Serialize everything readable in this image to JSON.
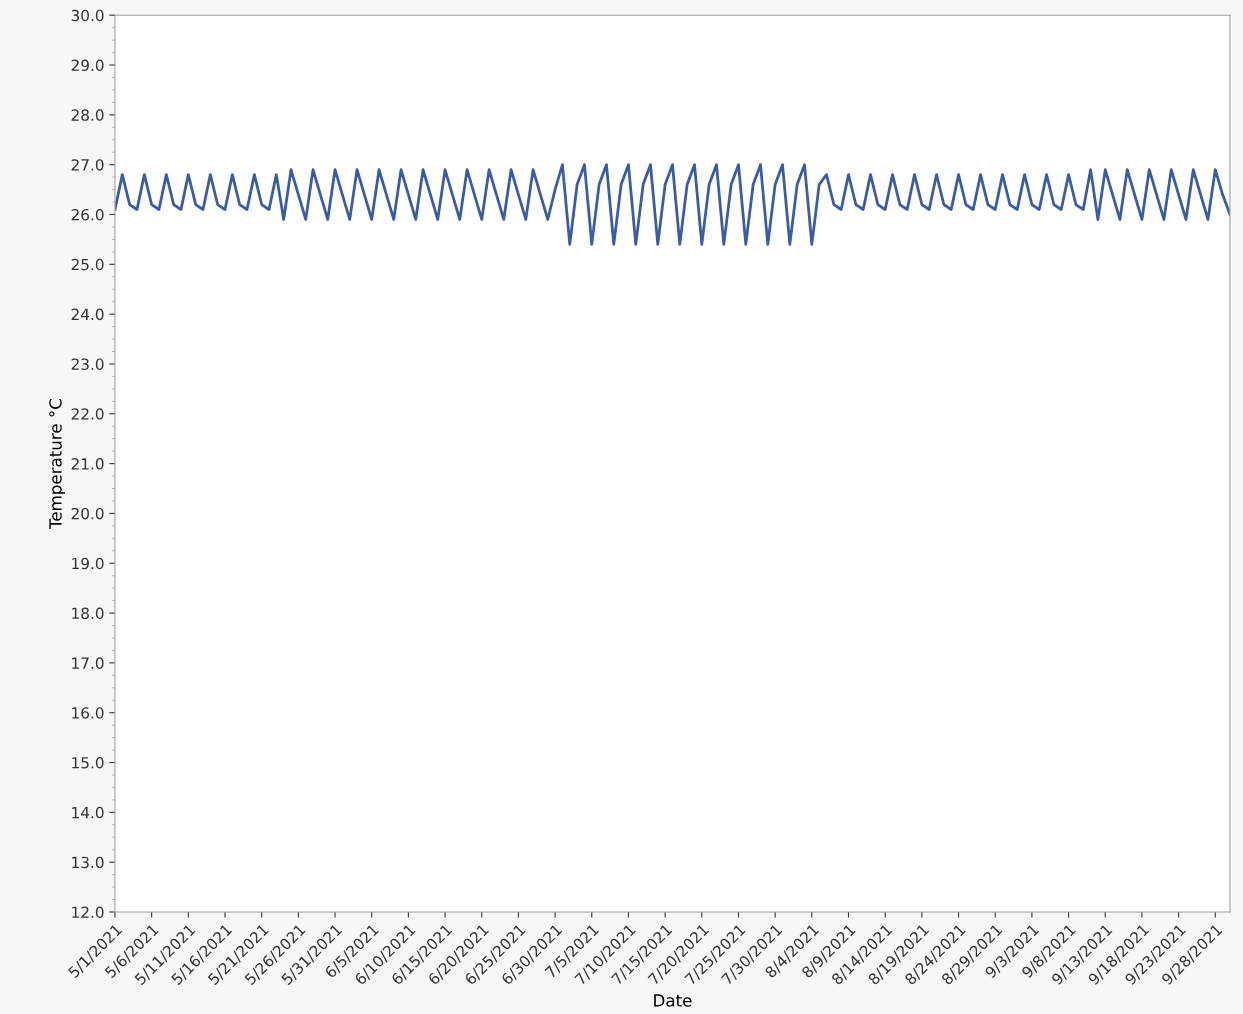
{
  "chart_data": {
    "type": "line",
    "xlabel": "Date",
    "ylabel": "Temperature °C",
    "x": [
      "2021-05-01",
      "2021-05-02",
      "2021-05-03",
      "2021-05-04",
      "2021-05-05",
      "2021-05-06",
      "2021-05-07",
      "2021-05-08",
      "2021-05-09",
      "2021-05-10",
      "2021-05-11",
      "2021-05-12",
      "2021-05-13",
      "2021-05-14",
      "2021-05-15",
      "2021-05-16",
      "2021-05-17",
      "2021-05-18",
      "2021-05-19",
      "2021-05-20",
      "2021-05-21",
      "2021-05-22",
      "2021-05-23",
      "2021-05-24",
      "2021-05-25",
      "2021-05-26",
      "2021-05-27",
      "2021-05-28",
      "2021-05-29",
      "2021-05-30",
      "2021-05-31",
      "2021-06-01",
      "2021-06-02",
      "2021-06-03",
      "2021-06-04",
      "2021-06-05",
      "2021-06-06",
      "2021-06-07",
      "2021-06-08",
      "2021-06-09",
      "2021-06-10",
      "2021-06-11",
      "2021-06-12",
      "2021-06-13",
      "2021-06-14",
      "2021-06-15",
      "2021-06-16",
      "2021-06-17",
      "2021-06-18",
      "2021-06-19",
      "2021-06-20",
      "2021-06-21",
      "2021-06-22",
      "2021-06-23",
      "2021-06-24",
      "2021-06-25",
      "2021-06-26",
      "2021-06-27",
      "2021-06-28",
      "2021-06-29",
      "2021-06-30",
      "2021-07-01",
      "2021-07-02",
      "2021-07-03",
      "2021-07-04",
      "2021-07-05",
      "2021-07-06",
      "2021-07-07",
      "2021-07-08",
      "2021-07-09",
      "2021-07-10",
      "2021-07-11",
      "2021-07-12",
      "2021-07-13",
      "2021-07-14",
      "2021-07-15",
      "2021-07-16",
      "2021-07-17",
      "2021-07-18",
      "2021-07-19",
      "2021-07-20",
      "2021-07-21",
      "2021-07-22",
      "2021-07-23",
      "2021-07-24",
      "2021-07-25",
      "2021-07-26",
      "2021-07-27",
      "2021-07-28",
      "2021-07-29",
      "2021-07-30",
      "2021-07-31",
      "2021-08-01",
      "2021-08-02",
      "2021-08-03",
      "2021-08-04",
      "2021-08-05",
      "2021-08-06",
      "2021-08-07",
      "2021-08-08",
      "2021-08-09",
      "2021-08-10",
      "2021-08-11",
      "2021-08-12",
      "2021-08-13",
      "2021-08-14",
      "2021-08-15",
      "2021-08-16",
      "2021-08-17",
      "2021-08-18",
      "2021-08-19",
      "2021-08-20",
      "2021-08-21",
      "2021-08-22",
      "2021-08-23",
      "2021-08-24",
      "2021-08-25",
      "2021-08-26",
      "2021-08-27",
      "2021-08-28",
      "2021-08-29",
      "2021-08-30",
      "2021-08-31",
      "2021-09-01",
      "2021-09-02",
      "2021-09-03",
      "2021-09-04",
      "2021-09-05",
      "2021-09-06",
      "2021-09-07",
      "2021-09-08",
      "2021-09-09",
      "2021-09-10",
      "2021-09-11",
      "2021-09-12",
      "2021-09-13",
      "2021-09-14",
      "2021-09-15",
      "2021-09-16",
      "2021-09-17",
      "2021-09-18",
      "2021-09-19",
      "2021-09-20",
      "2021-09-21",
      "2021-09-22",
      "2021-09-23",
      "2021-09-24",
      "2021-09-25",
      "2021-09-26",
      "2021-09-27",
      "2021-09-28",
      "2021-09-29",
      "2021-09-30"
    ],
    "series": [
      {
        "color": "#3a5ba6",
        "values": [
          26.1,
          26.8,
          26.2,
          26.1,
          26.8,
          26.2,
          26.1,
          26.8,
          26.2,
          26.1,
          26.8,
          26.2,
          26.1,
          26.8,
          26.2,
          26.1,
          26.8,
          26.2,
          26.1,
          26.8,
          26.2,
          26.1,
          26.8,
          25.9,
          26.9,
          26.4,
          25.9,
          26.9,
          26.4,
          25.9,
          26.9,
          26.4,
          25.9,
          26.9,
          26.4,
          25.9,
          26.9,
          26.4,
          25.9,
          26.9,
          26.4,
          25.9,
          26.9,
          26.4,
          25.9,
          26.9,
          26.4,
          25.9,
          26.9,
          26.4,
          25.9,
          26.9,
          26.4,
          25.9,
          26.9,
          26.4,
          25.9,
          26.9,
          26.4,
          25.9,
          26.5,
          27.0,
          25.4,
          26.6,
          27.0,
          25.4,
          26.6,
          27.0,
          25.4,
          26.6,
          27.0,
          25.4,
          26.6,
          27.0,
          25.4,
          26.6,
          27.0,
          25.4,
          26.6,
          27.0,
          25.4,
          26.6,
          27.0,
          25.4,
          26.6,
          27.0,
          25.4,
          26.6,
          27.0,
          25.4,
          26.6,
          27.0,
          25.4,
          26.6,
          27.0,
          25.4,
          26.6,
          26.8,
          26.2,
          26.1,
          26.8,
          26.2,
          26.1,
          26.8,
          26.2,
          26.1,
          26.8,
          26.2,
          26.1,
          26.8,
          26.2,
          26.1,
          26.8,
          26.2,
          26.1,
          26.8,
          26.2,
          26.1,
          26.8,
          26.2,
          26.1,
          26.8,
          26.2,
          26.1,
          26.8,
          26.2,
          26.1,
          26.8,
          26.2,
          26.1,
          26.8,
          26.2,
          26.1,
          26.9,
          25.9,
          26.9,
          26.4,
          25.9,
          26.9,
          26.4,
          25.9,
          26.9,
          26.4,
          25.9,
          26.9,
          26.4,
          25.9,
          26.9,
          26.4,
          25.9,
          26.9,
          26.4,
          26.0
        ]
      }
    ],
    "xlim": [
      "2021-05-01",
      "2021-09-30"
    ],
    "xticks": [
      {
        "value": "2021-05-01",
        "label": "5/1/2021"
      },
      {
        "value": "2021-05-06",
        "label": "5/6/2021"
      },
      {
        "value": "2021-05-11",
        "label": "5/11/2021"
      },
      {
        "value": "2021-05-16",
        "label": "5/16/2021"
      },
      {
        "value": "2021-05-21",
        "label": "5/21/2021"
      },
      {
        "value": "2021-05-26",
        "label": "5/26/2021"
      },
      {
        "value": "2021-05-31",
        "label": "5/31/2021"
      },
      {
        "value": "2021-06-05",
        "label": "6/5/2021"
      },
      {
        "value": "2021-06-10",
        "label": "6/10/2021"
      },
      {
        "value": "2021-06-15",
        "label": "6/15/2021"
      },
      {
        "value": "2021-06-20",
        "label": "6/20/2021"
      },
      {
        "value": "2021-06-25",
        "label": "6/25/2021"
      },
      {
        "value": "2021-06-30",
        "label": "6/30/2021"
      },
      {
        "value": "2021-07-05",
        "label": "7/5/2021"
      },
      {
        "value": "2021-07-10",
        "label": "7/10/2021"
      },
      {
        "value": "2021-07-15",
        "label": "7/15/2021"
      },
      {
        "value": "2021-07-20",
        "label": "7/20/2021"
      },
      {
        "value": "2021-07-25",
        "label": "7/25/2021"
      },
      {
        "value": "2021-07-30",
        "label": "7/30/2021"
      },
      {
        "value": "2021-08-04",
        "label": "8/4/2021"
      },
      {
        "value": "2021-08-09",
        "label": "8/9/2021"
      },
      {
        "value": "2021-08-14",
        "label": "8/14/2021"
      },
      {
        "value": "2021-08-19",
        "label": "8/19/2021"
      },
      {
        "value": "2021-08-24",
        "label": "8/24/2021"
      },
      {
        "value": "2021-08-29",
        "label": "8/29/2021"
      },
      {
        "value": "2021-09-03",
        "label": "9/3/2021"
      },
      {
        "value": "2021-09-08",
        "label": "9/8/2021"
      },
      {
        "value": "2021-09-13",
        "label": "9/13/2021"
      },
      {
        "value": "2021-09-18",
        "label": "9/18/2021"
      },
      {
        "value": "2021-09-23",
        "label": "9/23/2021"
      },
      {
        "value": "2021-09-28",
        "label": "9/28/2021"
      }
    ],
    "ylim": [
      12,
      30
    ],
    "yticks": [
      {
        "value": 12,
        "label": "12.0"
      },
      {
        "value": 13,
        "label": "13.0"
      },
      {
        "value": 14,
        "label": "14.0"
      },
      {
        "value": 15,
        "label": "15.0"
      },
      {
        "value": 16,
        "label": "16.0"
      },
      {
        "value": 17,
        "label": "17.0"
      },
      {
        "value": 18,
        "label": "18.0"
      },
      {
        "value": 19,
        "label": "19.0"
      },
      {
        "value": 20,
        "label": "20.0"
      },
      {
        "value": 21,
        "label": "21.0"
      },
      {
        "value": 22,
        "label": "22.0"
      },
      {
        "value": 23,
        "label": "23.0"
      },
      {
        "value": 24,
        "label": "24.0"
      },
      {
        "value": 25,
        "label": "25.0"
      },
      {
        "value": 26,
        "label": "26.0"
      },
      {
        "value": 27,
        "label": "27.0"
      },
      {
        "value": 28,
        "label": "28.0"
      },
      {
        "value": 29,
        "label": "29.0"
      },
      {
        "value": 30,
        "label": "30.0"
      }
    ],
    "grid": false,
    "legend": false
  }
}
